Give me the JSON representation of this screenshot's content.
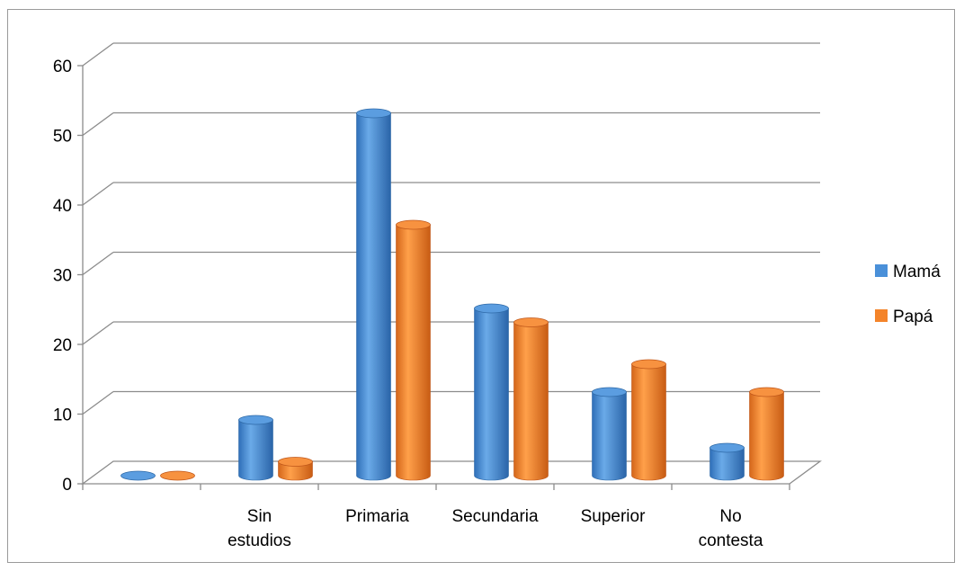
{
  "chart_data": {
    "type": "bar",
    "variant": "3d-cylinder",
    "categories": [
      "",
      "Sin estudios",
      "Primaria",
      "Secundaria",
      "Superior",
      "No contesta"
    ],
    "series": [
      {
        "name": "Mamá",
        "values": [
          0,
          8,
          52,
          24,
          12,
          4
        ],
        "color": "#4a90d9"
      },
      {
        "name": "Papá",
        "values": [
          0,
          2,
          36,
          22,
          16,
          12
        ],
        "color": "#f4842a"
      }
    ],
    "title": "",
    "xlabel": "",
    "ylabel": "",
    "ylim": [
      0,
      60
    ],
    "yticks": [
      0,
      10,
      20,
      30,
      40,
      50,
      60
    ],
    "grid": true,
    "legend_position": "right"
  }
}
